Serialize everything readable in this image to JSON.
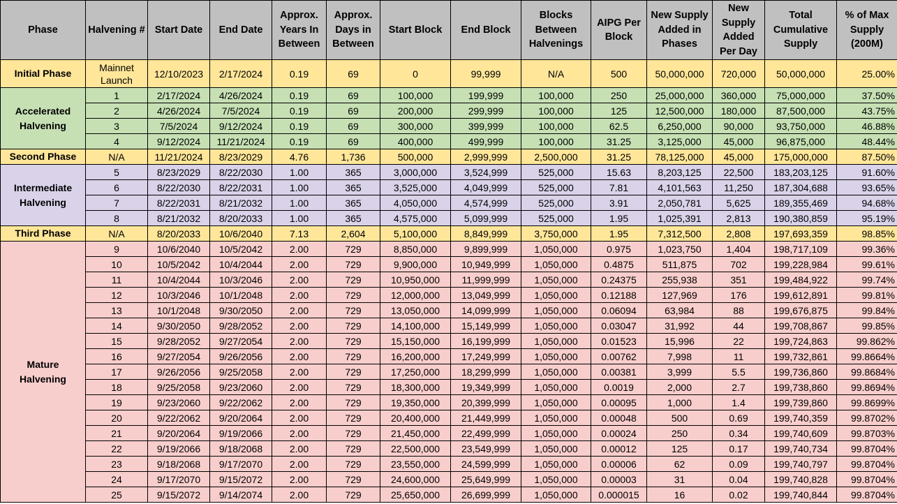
{
  "headers": [
    "Phase",
    "Halvening #",
    "Start Date",
    "End Date",
    "Approx. Years In Between",
    "Approx. Days in Between",
    "Start Block",
    "End Block",
    "Blocks Between Halvenings",
    "AIPG Per Block",
    "New Supply Added in Phases",
    "New Supply Added Per Day",
    "Total Cumulative Supply",
    "% of Max Supply (200M)"
  ],
  "groups": [
    {
      "phase": "Initial Phase",
      "color": "#ffe699",
      "rows": [
        [
          "Mainnet Launch",
          "12/10/2023",
          "2/17/2024",
          "0.19",
          "69",
          "0",
          "99,999",
          "N/A",
          "500",
          "50,000,000",
          "720,000",
          "50,000,000",
          "25.00%"
        ]
      ]
    },
    {
      "phase": "Accelerated Halvening",
      "color": "#c6e0b4",
      "rows": [
        [
          "1",
          "2/17/2024",
          "4/26/2024",
          "0.19",
          "69",
          "100,000",
          "199,999",
          "100,000",
          "250",
          "25,000,000",
          "360,000",
          "75,000,000",
          "37.50%"
        ],
        [
          "2",
          "4/26/2024",
          "7/5/2024",
          "0.19",
          "69",
          "200,000",
          "299,999",
          "100,000",
          "125",
          "12,500,000",
          "180,000",
          "87,500,000",
          "43.75%"
        ],
        [
          "3",
          "7/5/2024",
          "9/12/2024",
          "0.19",
          "69",
          "300,000",
          "399,999",
          "100,000",
          "62.5",
          "6,250,000",
          "90,000",
          "93,750,000",
          "46.88%"
        ],
        [
          "4",
          "9/12/2024",
          "11/21/2024",
          "0.19",
          "69",
          "400,000",
          "499,999",
          "100,000",
          "31.25",
          "3,125,000",
          "45,000",
          "96,875,000",
          "48.44%"
        ]
      ]
    },
    {
      "phase": "Second Phase",
      "color": "#ffe699",
      "rows": [
        [
          "N/A",
          "11/21/2024",
          "8/23/2029",
          "4.76",
          "1,736",
          "500,000",
          "2,999,999",
          "2,500,000",
          "31.25",
          "78,125,000",
          "45,000",
          "175,000,000",
          "87.50%"
        ]
      ]
    },
    {
      "phase": "Intermediate Halvening",
      "color": "#d9d2e9",
      "rows": [
        [
          "5",
          "8/23/2029",
          "8/22/2030",
          "1.00",
          "365",
          "3,000,000",
          "3,524,999",
          "525,000",
          "15.63",
          "8,203,125",
          "22,500",
          "183,203,125",
          "91.60%"
        ],
        [
          "6",
          "8/22/2030",
          "8/22/2031",
          "1.00",
          "365",
          "3,525,000",
          "4,049,999",
          "525,000",
          "7.81",
          "4,101,563",
          "11,250",
          "187,304,688",
          "93.65%"
        ],
        [
          "7",
          "8/22/2031",
          "8/21/2032",
          "1.00",
          "365",
          "4,050,000",
          "4,574,999",
          "525,000",
          "3.91",
          "2,050,781",
          "5,625",
          "189,355,469",
          "94.68%"
        ],
        [
          "8",
          "8/21/2032",
          "8/20/2033",
          "1.00",
          "365",
          "4,575,000",
          "5,099,999",
          "525,000",
          "1.95",
          "1,025,391",
          "2,813",
          "190,380,859",
          "95.19%"
        ]
      ]
    },
    {
      "phase": "Third Phase",
      "color": "#ffe699",
      "rows": [
        [
          "N/A",
          "8/20/2033",
          "10/6/2040",
          "7.13",
          "2,604",
          "5,100,000",
          "8,849,999",
          "3,750,000",
          "1.95",
          "7,312,500",
          "2,808",
          "197,693,359",
          "98.85%"
        ]
      ]
    },
    {
      "phase": "Mature Halvening",
      "color": "#f8cecc",
      "rows": [
        [
          "9",
          "10/6/2040",
          "10/5/2042",
          "2.00",
          "729",
          "8,850,000",
          "9,899,999",
          "1,050,000",
          "0.975",
          "1,023,750",
          "1,404",
          "198,717,109",
          "99.36%"
        ],
        [
          "10",
          "10/5/2042",
          "10/4/2044",
          "2.00",
          "729",
          "9,900,000",
          "10,949,999",
          "1,050,000",
          "0.4875",
          "511,875",
          "702",
          "199,228,984",
          "99.61%"
        ],
        [
          "11",
          "10/4/2044",
          "10/3/2046",
          "2.00",
          "729",
          "10,950,000",
          "11,999,999",
          "1,050,000",
          "0.24375",
          "255,938",
          "351",
          "199,484,922",
          "99.74%"
        ],
        [
          "12",
          "10/3/2046",
          "10/1/2048",
          "2.00",
          "729",
          "12,000,000",
          "13,049,999",
          "1,050,000",
          "0.12188",
          "127,969",
          "176",
          "199,612,891",
          "99.81%"
        ],
        [
          "13",
          "10/1/2048",
          "9/30/2050",
          "2.00",
          "729",
          "13,050,000",
          "14,099,999",
          "1,050,000",
          "0.06094",
          "63,984",
          "88",
          "199,676,875",
          "99.84%"
        ],
        [
          "14",
          "9/30/2050",
          "9/28/2052",
          "2.00",
          "729",
          "14,100,000",
          "15,149,999",
          "1,050,000",
          "0.03047",
          "31,992",
          "44",
          "199,708,867",
          "99.85%"
        ],
        [
          "15",
          "9/28/2052",
          "9/27/2054",
          "2.00",
          "729",
          "15,150,000",
          "16,199,999",
          "1,050,000",
          "0.01523",
          "15,996",
          "22",
          "199,724,863",
          "99.862%"
        ],
        [
          "16",
          "9/27/2054",
          "9/26/2056",
          "2.00",
          "729",
          "16,200,000",
          "17,249,999",
          "1,050,000",
          "0.00762",
          "7,998",
          "11",
          "199,732,861",
          "99.8664%"
        ],
        [
          "17",
          "9/26/2056",
          "9/25/2058",
          "2.00",
          "729",
          "17,250,000",
          "18,299,999",
          "1,050,000",
          "0.00381",
          "3,999",
          "5.5",
          "199,736,860",
          "99.8684%"
        ],
        [
          "18",
          "9/25/2058",
          "9/23/2060",
          "2.00",
          "729",
          "18,300,000",
          "19,349,999",
          "1,050,000",
          "0.0019",
          "2,000",
          "2.7",
          "199,738,860",
          "99.8694%"
        ],
        [
          "19",
          "9/23/2060",
          "9/22/2062",
          "2.00",
          "729",
          "19,350,000",
          "20,399,999",
          "1,050,000",
          "0.00095",
          "1,000",
          "1.4",
          "199,739,860",
          "99.8699%"
        ],
        [
          "20",
          "9/22/2062",
          "9/20/2064",
          "2.00",
          "729",
          "20,400,000",
          "21,449,999",
          "1,050,000",
          "0.00048",
          "500",
          "0.69",
          "199,740,359",
          "99.8702%"
        ],
        [
          "21",
          "9/20/2064",
          "9/19/2066",
          "2.00",
          "729",
          "21,450,000",
          "22,499,999",
          "1,050,000",
          "0.00024",
          "250",
          "0.34",
          "199,740,609",
          "99.8703%"
        ],
        [
          "22",
          "9/19/2066",
          "9/18/2068",
          "2.00",
          "729",
          "22,500,000",
          "23,549,999",
          "1,050,000",
          "0.00012",
          "125",
          "0.17",
          "199,740,734",
          "99.8704%"
        ],
        [
          "23",
          "9/18/2068",
          "9/17/2070",
          "2.00",
          "729",
          "23,550,000",
          "24,599,999",
          "1,050,000",
          "0.00006",
          "62",
          "0.09",
          "199,740,797",
          "99.8704%"
        ],
        [
          "24",
          "9/17/2070",
          "9/15/2072",
          "2.00",
          "729",
          "24,600,000",
          "25,649,999",
          "1,050,000",
          "0.00003",
          "31",
          "0.04",
          "199,740,828",
          "99.8704%"
        ],
        [
          "25",
          "9/15/2072",
          "9/14/2074",
          "2.00",
          "729",
          "25,650,000",
          "26,699,999",
          "1,050,000",
          "0.000015",
          "16",
          "0.02",
          "199,740,844",
          "99.8704%"
        ]
      ]
    }
  ]
}
